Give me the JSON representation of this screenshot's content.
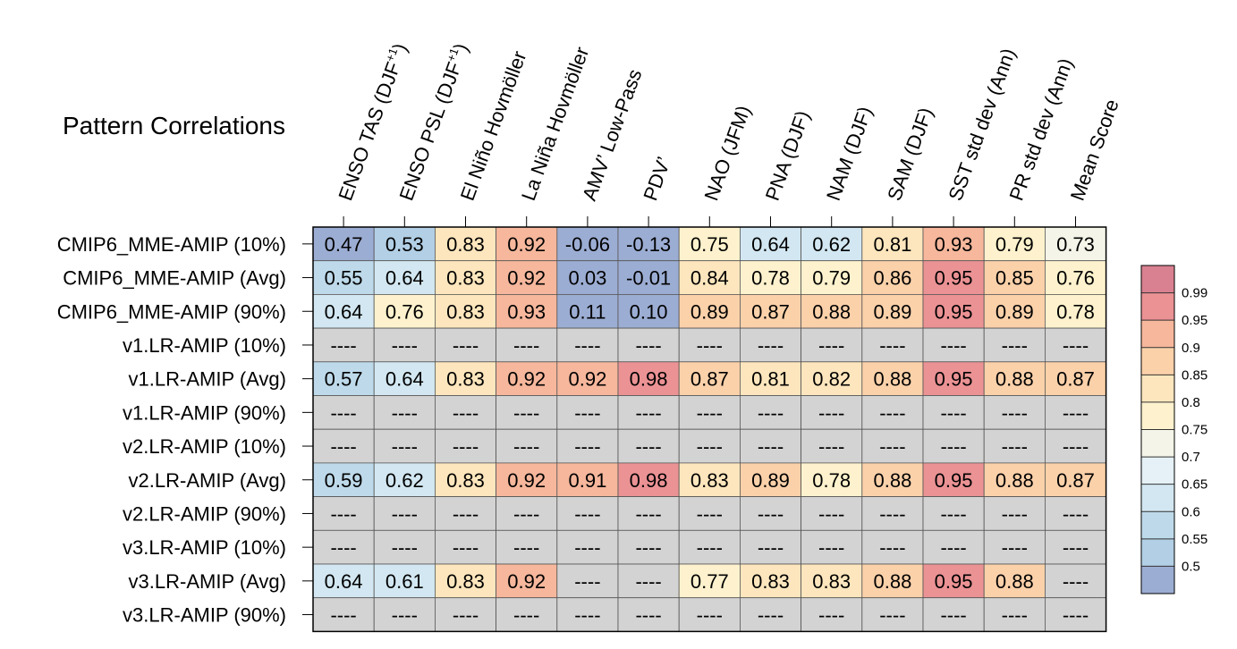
{
  "chart_data": {
    "type": "heatmap",
    "title": "Pattern Correlations",
    "columns": [
      {
        "base": "ENSO TAS (DJF",
        "sup": "+1",
        "tail": ")"
      },
      {
        "base": "ENSO PSL (DJF",
        "sup": "+1",
        "tail": ")"
      },
      {
        "base": "El Niño Hovmöller",
        "sup": "",
        "tail": ""
      },
      {
        "base": "La Niña Hovmöller",
        "sup": "",
        "tail": ""
      },
      {
        "base": "AMV’ Low-Pass",
        "sup": "",
        "tail": ""
      },
      {
        "base": "PDV’",
        "sup": "",
        "tail": ""
      },
      {
        "base": "NAO (JFM)",
        "sup": "",
        "tail": ""
      },
      {
        "base": "PNA (DJF)",
        "sup": "",
        "tail": ""
      },
      {
        "base": "NAM (DJF)",
        "sup": "",
        "tail": ""
      },
      {
        "base": "SAM (DJF)",
        "sup": "",
        "tail": ""
      },
      {
        "base": "SST std dev (Ann)",
        "sup": "",
        "tail": ""
      },
      {
        "base": "PR std dev (Ann)",
        "sup": "",
        "tail": ""
      },
      {
        "base": "Mean Score",
        "sup": "",
        "tail": ""
      }
    ],
    "rows": [
      {
        "label": "CMIP6_MME-AMIP (10%)",
        "values": [
          "0.47",
          "0.53",
          "0.83",
          "0.92",
          "-0.06",
          "-0.13",
          "0.75",
          "0.64",
          "0.62",
          "0.81",
          "0.93",
          "0.79",
          "0.73"
        ]
      },
      {
        "label": "CMIP6_MME-AMIP (Avg)",
        "values": [
          "0.55",
          "0.64",
          "0.83",
          "0.92",
          "0.03",
          "-0.01",
          "0.84",
          "0.78",
          "0.79",
          "0.86",
          "0.95",
          "0.85",
          "0.76"
        ]
      },
      {
        "label": "CMIP6_MME-AMIP (90%)",
        "values": [
          "0.64",
          "0.76",
          "0.83",
          "0.93",
          "0.11",
          "0.10",
          "0.89",
          "0.87",
          "0.88",
          "0.89",
          "0.95",
          "0.89",
          "0.78"
        ]
      },
      {
        "label": "v1.LR-AMIP (10%)",
        "values": [
          "----",
          "----",
          "----",
          "----",
          "----",
          "----",
          "----",
          "----",
          "----",
          "----",
          "----",
          "----",
          "----"
        ]
      },
      {
        "label": "v1.LR-AMIP (Avg)",
        "values": [
          "0.57",
          "0.64",
          "0.83",
          "0.92",
          "0.92",
          "0.98",
          "0.87",
          "0.81",
          "0.82",
          "0.88",
          "0.95",
          "0.88",
          "0.87"
        ]
      },
      {
        "label": "v1.LR-AMIP (90%)",
        "values": [
          "----",
          "----",
          "----",
          "----",
          "----",
          "----",
          "----",
          "----",
          "----",
          "----",
          "----",
          "----",
          "----"
        ]
      },
      {
        "label": "v2.LR-AMIP (10%)",
        "values": [
          "----",
          "----",
          "----",
          "----",
          "----",
          "----",
          "----",
          "----",
          "----",
          "----",
          "----",
          "----",
          "----"
        ]
      },
      {
        "label": "v2.LR-AMIP (Avg)",
        "values": [
          "0.59",
          "0.62",
          "0.83",
          "0.92",
          "0.91",
          "0.98",
          "0.83",
          "0.89",
          "0.78",
          "0.88",
          "0.95",
          "0.88",
          "0.87"
        ]
      },
      {
        "label": "v2.LR-AMIP (90%)",
        "values": [
          "----",
          "----",
          "----",
          "----",
          "----",
          "----",
          "----",
          "----",
          "----",
          "----",
          "----",
          "----",
          "----"
        ]
      },
      {
        "label": "v3.LR-AMIP (10%)",
        "values": [
          "----",
          "----",
          "----",
          "----",
          "----",
          "----",
          "----",
          "----",
          "----",
          "----",
          "----",
          "----",
          "----"
        ]
      },
      {
        "label": "v3.LR-AMIP (Avg)",
        "values": [
          "0.64",
          "0.61",
          "0.83",
          "0.92",
          "----",
          "----",
          "0.77",
          "0.83",
          "0.83",
          "0.88",
          "0.95",
          "0.88",
          "----"
        ]
      },
      {
        "label": "v3.LR-AMIP (90%)",
        "values": [
          "----",
          "----",
          "----",
          "----",
          "----",
          "----",
          "----",
          "----",
          "----",
          "----",
          "----",
          "----",
          "----"
        ]
      }
    ],
    "colorbar": {
      "ticks": [
        "0.5",
        "0.55",
        "0.6",
        "0.65",
        "0.7",
        "0.75",
        "0.8",
        "0.85",
        "0.9",
        "0.95",
        "0.99"
      ],
      "colors": [
        "#9cadd3",
        "#b2cfe5",
        "#bedaea",
        "#d2e7f1",
        "#e5f1f6",
        "#f4f4e8",
        "#fdf2cd",
        "#fde6bd",
        "#fbd1aa",
        "#f6b79c",
        "#eb9294",
        "#d98190"
      ],
      "missing_color": "#d3d3d3"
    }
  }
}
